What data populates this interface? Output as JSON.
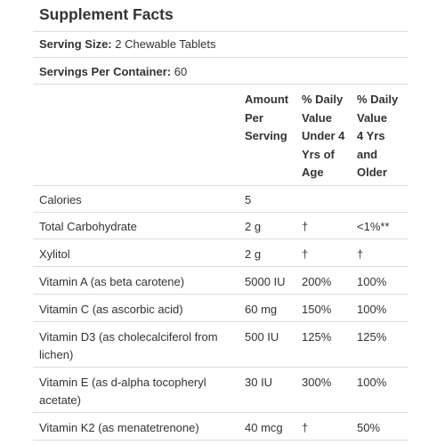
{
  "title": "Supplement Facts",
  "serving_size": {
    "label": "Serving Size:",
    "value": "2 Chewable Tablets"
  },
  "servings_per_container": {
    "label": "Servings Per Container:",
    "value": "60"
  },
  "headers": {
    "amount": [
      "Amount",
      "Per",
      "Serving"
    ],
    "dv_under4": [
      "% Daily",
      "Value",
      "Under 4",
      "Yrs of",
      "Age"
    ],
    "dv_4plus": [
      "% Daily",
      "Value",
      "4 Yrs",
      "and",
      "Older"
    ]
  },
  "rows": [
    {
      "name": "Calories",
      "amount": "5",
      "dv_under4": "",
      "dv_4plus": ""
    },
    {
      "name": "Total Carbohydrate",
      "amount": "2 g",
      "dv_under4": "†",
      "dv_4plus": "<1%**"
    },
    {
      "name": "Xylitol",
      "amount": "2 g",
      "dv_under4": "†",
      "dv_4plus": "†"
    },
    {
      "name": "Vitamin A (as beta carotene)",
      "amount": "5000 IU",
      "dv_under4": "200%",
      "dv_4plus": "100%"
    },
    {
      "name": "Vitamin C (as ascorbic acid)",
      "amount": "60 mg",
      "dv_under4": "150%",
      "dv_4plus": "100%"
    },
    {
      "name": "Vitamin D3 (as cholecalciferol from lichen)",
      "amount": "500 IU",
      "dv_under4": "125%",
      "dv_4plus": "125%"
    },
    {
      "name": "Vitamin E (as d-alpha tocopheryl acetate)",
      "amount": "30 IU",
      "dv_under4": "300%",
      "dv_4plus": "100%"
    },
    {
      "name": "Vitamin K2 (as menatetrenone)",
      "amount": "40 mcg",
      "dv_under4": "†",
      "dv_4plus": "50%"
    }
  ]
}
